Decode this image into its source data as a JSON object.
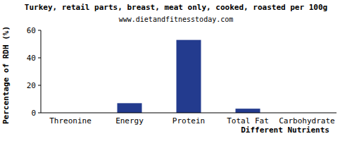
{
  "chart_data": {
    "type": "bar",
    "title": "Turkey, retail parts, breast, meat only, cooked, roasted per 100g",
    "subtitle": "www.dietandfitnesstoday.com",
    "y_label": "Percentage of RDH (%)",
    "x_label": "Different Nutrients",
    "categories": [
      "Threonine",
      "Energy",
      "Protein",
      "Total Fat",
      "Carbohydrate"
    ],
    "values": [
      0,
      7,
      53,
      3,
      0
    ],
    "color": "#233b8e",
    "ylim": [
      0,
      60
    ],
    "yticks": [
      0,
      20,
      40,
      60
    ],
    "grid": false
  }
}
